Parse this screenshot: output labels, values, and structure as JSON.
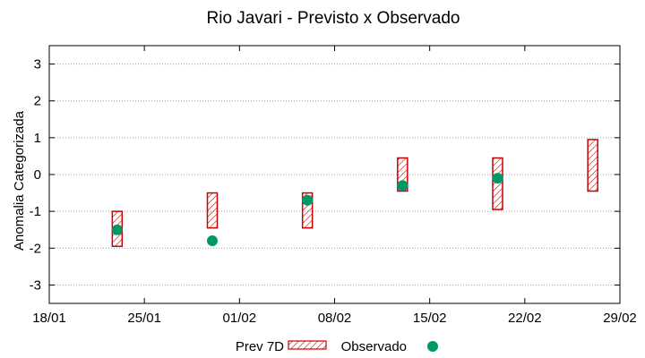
{
  "chart_data": {
    "type": "errorbar",
    "title": "Rio Javari - Previsto x Observado",
    "ylabel": "Anomalia Categorizada",
    "xlabel": "",
    "x_ticks": [
      "18/01",
      "25/01",
      "01/02",
      "08/02",
      "15/02",
      "22/02",
      "29/02"
    ],
    "xlim": [
      "18/01",
      "29/02"
    ],
    "y_ticks": [
      "-3",
      "-2",
      "-1",
      "0",
      "1",
      "2",
      "3"
    ],
    "ylim": [
      -3.5,
      3.5
    ],
    "grid": true,
    "legend_placement": "bottom-center",
    "colors": {
      "forecast": "#cc0000",
      "observed": "#009966",
      "grid": "#a0a0a0"
    },
    "series": [
      {
        "name": "Prev 7D",
        "style": "hatched-box",
        "points": [
          {
            "x": "23/01",
            "low": -1.95,
            "high": -1.0
          },
          {
            "x": "30/01",
            "low": -1.45,
            "high": -0.5
          },
          {
            "x": "06/02",
            "low": -1.45,
            "high": -0.5
          },
          {
            "x": "13/02",
            "low": -0.45,
            "high": 0.45
          },
          {
            "x": "20/02",
            "low": -0.95,
            "high": 0.45
          },
          {
            "x": "27/02",
            "low": -0.45,
            "high": 0.95
          }
        ]
      },
      {
        "name": "Observado",
        "style": "circle",
        "points": [
          {
            "x": "23/01",
            "y": -1.5
          },
          {
            "x": "30/01",
            "y": -1.8
          },
          {
            "x": "06/02",
            "y": -0.7
          },
          {
            "x": "13/02",
            "y": -0.3
          },
          {
            "x": "20/02",
            "y": -0.1
          }
        ]
      }
    ]
  }
}
